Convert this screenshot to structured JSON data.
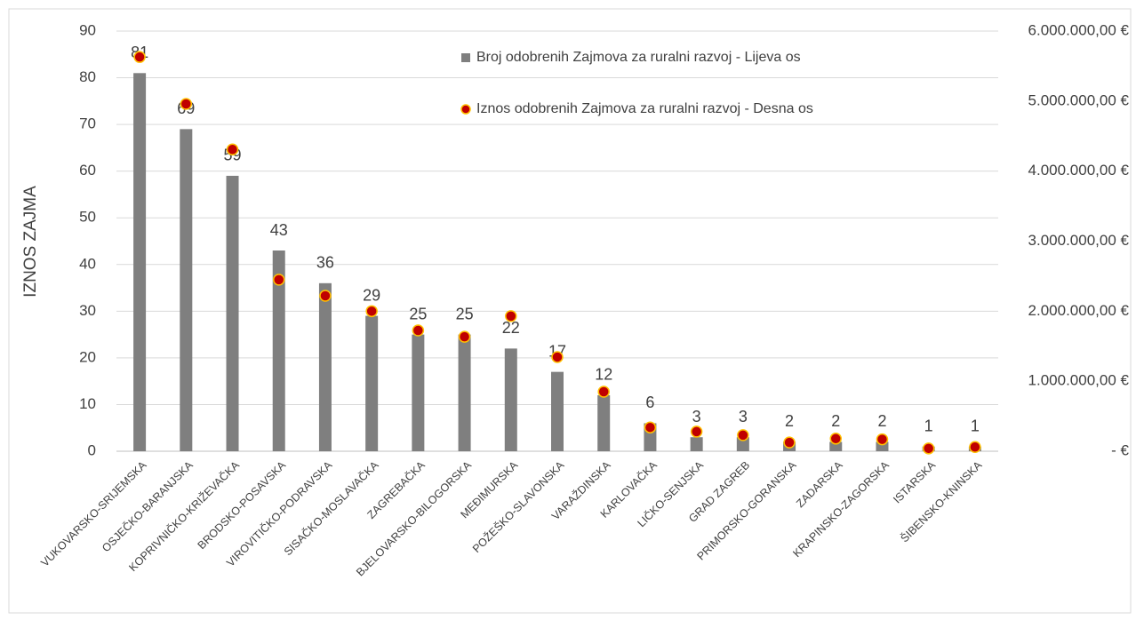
{
  "chart_data": {
    "type": "combo",
    "y_label": "IZNOS ZAJMA",
    "categories": [
      "VUKOVARSKO-SRIJEMSKA",
      "OSJEČKO-BARANJSKA",
      "KOPRIVNIČKO-KRIŽEVAČKA",
      "BRODSKO-POSAVSKA",
      "VIROVITIČKO-PODRAVSKA",
      "SISAČKO-MOSLAVAČKA",
      "ZAGREBAČKA",
      "BJELOVARSKO-BILOGORSKA",
      "MEĐIMURSKA",
      "POŽEŠKO-SLAVONSKA",
      "VARAŽDINSKA",
      "KARLOVAČKA",
      "LIČKO-SENJSKA",
      "GRAD ZAGREB",
      "PRIMORSKO-GORANSKA",
      "ZADARSKA",
      "KRAPINSKO-ZAGORSKA",
      "ISTARSKA",
      "ŠIBENSKO-KNINSKA"
    ],
    "series": [
      {
        "name": "Broj odobrenih Zajmova za ruralni razvoj - Lijeva os",
        "type": "bar",
        "color": "#7f7f7f",
        "values": [
          81,
          69,
          59,
          43,
          36,
          29,
          25,
          25,
          22,
          17,
          12,
          6,
          3,
          3,
          2,
          2,
          2,
          1,
          1
        ]
      },
      {
        "name": "Iznos odobrenih Zajmova za ruralni razvoj - Desna os",
        "type": "scatter",
        "axis": "y2",
        "color": "#c00000",
        "edge_color": "#ffc000",
        "values": [
          5630000,
          4960000,
          4310000,
          2450000,
          2220000,
          2000000,
          1725000,
          1635000,
          1930000,
          1345000,
          850000,
          340000,
          280000,
          230000,
          125000,
          180000,
          170000,
          40000,
          60000
        ]
      }
    ],
    "ylim": [
      0,
      90
    ],
    "yticks": [
      0,
      10,
      20,
      30,
      40,
      50,
      60,
      70,
      80,
      90
    ],
    "y2lim": [
      0,
      6000000
    ],
    "y2ticks": [
      {
        "value": 0,
        "label": "-   €"
      },
      {
        "value": 1000000,
        "label": "1.000.000,00 €"
      },
      {
        "value": 2000000,
        "label": "2.000.000,00 €"
      },
      {
        "value": 3000000,
        "label": "3.000.000,00 €"
      },
      {
        "value": 4000000,
        "label": "4.000.000,00 €"
      },
      {
        "value": 5000000,
        "label": "5.000.000,00 €"
      },
      {
        "value": 6000000,
        "label": "6.000.000,00 €"
      }
    ],
    "grid": true,
    "legend": "top"
  }
}
